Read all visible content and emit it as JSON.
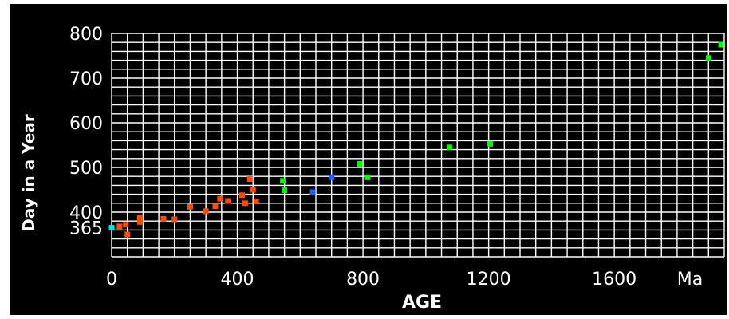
{
  "chart_data": {
    "type": "scatter",
    "title": "",
    "xlabel": "AGE",
    "ylabel": "Day in a Year",
    "x_unit_label": "Ma",
    "xlim": [
      0,
      1950
    ],
    "ylim": [
      300,
      800
    ],
    "x_ticks": [
      0,
      400,
      800,
      1200,
      1600
    ],
    "x_tick_labels": [
      "0",
      "400",
      "800",
      "1200",
      "1600"
    ],
    "y_ticks": [
      365,
      400,
      500,
      600,
      700,
      800
    ],
    "y_tick_labels": [
      "365",
      "400",
      "500",
      "600",
      "700",
      "800"
    ],
    "grid": true,
    "background_color": "#000000",
    "grid_color": "#ffffff",
    "series": [
      {
        "color": "#00e5e5",
        "points": [
          [
            0,
            365
          ]
        ]
      },
      {
        "color": "#ff4a00",
        "points": [
          [
            25,
            368
          ],
          [
            45,
            372
          ],
          [
            50,
            350
          ],
          [
            90,
            378
          ],
          [
            90,
            388
          ],
          [
            165,
            385
          ],
          [
            200,
            384
          ],
          [
            250,
            412
          ],
          [
            300,
            402
          ],
          [
            330,
            413
          ],
          [
            345,
            430
          ],
          [
            370,
            425
          ],
          [
            415,
            438
          ],
          [
            425,
            420
          ],
          [
            440,
            474
          ],
          [
            450,
            450
          ],
          [
            460,
            424
          ]
        ]
      },
      {
        "color": "#00ff00",
        "points": [
          [
            545,
            470
          ],
          [
            550,
            449
          ],
          [
            790,
            508
          ],
          [
            815,
            478
          ],
          [
            1075,
            545
          ],
          [
            1205,
            553
          ],
          [
            1900,
            745
          ],
          [
            1940,
            775
          ]
        ]
      },
      {
        "color": "#1f5cff",
        "points": [
          [
            640,
            445
          ],
          [
            700,
            478
          ]
        ]
      }
    ]
  }
}
